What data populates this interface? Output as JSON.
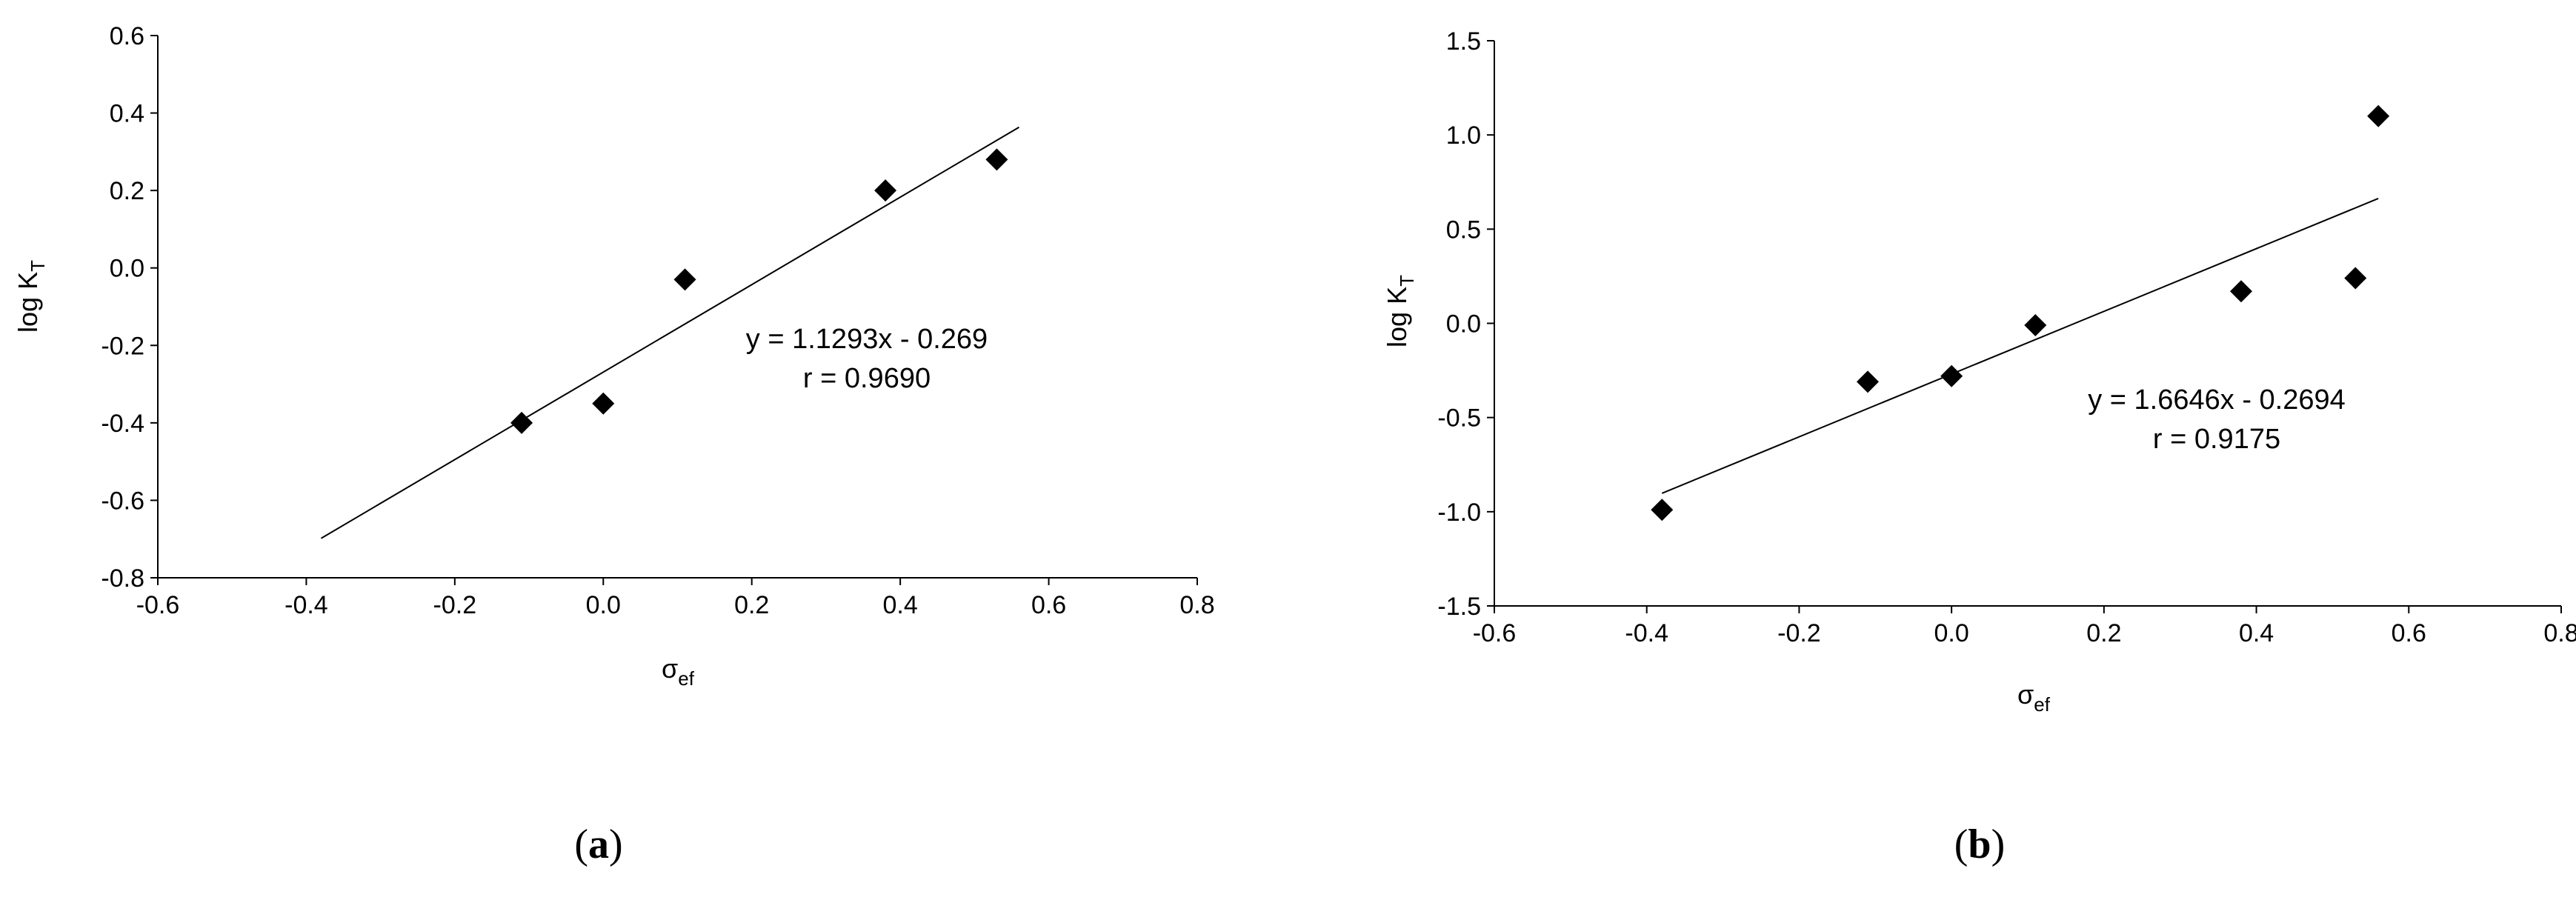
{
  "chart_data": [
    {
      "type": "scatter",
      "caption": "(a)",
      "caption_letter": "a",
      "xlabel": "σef",
      "ylabel": "log KT",
      "xlim": [
        -0.6,
        0.8
      ],
      "ylim": [
        -0.8,
        0.6
      ],
      "xticks": [
        "-0.6",
        "-0.4",
        "-0.2",
        "0.0",
        "0.2",
        "0.4",
        "0.6",
        "0.8"
      ],
      "yticks": [
        "-0.8",
        "-0.6",
        "-0.4",
        "-0.2",
        "0.0",
        "0.2",
        "0.4",
        "0.6"
      ],
      "series": [
        {
          "x": [
            -0.11,
            0.0,
            0.11,
            0.38,
            0.53
          ],
          "y": [
            -0.4,
            -0.35,
            -0.03,
            0.2,
            0.28
          ]
        }
      ],
      "trendline": {
        "slope": 1.1293,
        "intercept": -0.269,
        "x_range": [
          -0.38,
          0.56
        ]
      },
      "equation": "y = 1.1293x - 0.269",
      "r_text": "r = 0.9690",
      "grid": false,
      "marker_color": "#000000"
    },
    {
      "type": "scatter",
      "caption": "(b)",
      "caption_letter": "b",
      "xlabel": "σef",
      "ylabel": "log KT",
      "xlim": [
        -0.6,
        0.8
      ],
      "ylim": [
        -1.5,
        1.5
      ],
      "xticks": [
        "-0.6",
        "-0.4",
        "-0.2",
        "0.0",
        "0.2",
        "0.4",
        "0.6",
        "0.8"
      ],
      "yticks": [
        "-1.5",
        "-1.0",
        "-0.5",
        "0.0",
        "0.5",
        "1.0",
        "1.5"
      ],
      "series": [
        {
          "x": [
            -0.38,
            -0.11,
            0.0,
            0.11,
            0.38,
            0.53,
            0.56
          ],
          "y": [
            -0.99,
            -0.31,
            -0.28,
            -0.01,
            0.17,
            0.24,
            1.1
          ]
        }
      ],
      "trendline": {
        "slope": 1.6646,
        "intercept": -0.2694,
        "x_range": [
          -0.38,
          0.56
        ]
      },
      "equation": "y = 1.6646x - 0.2694",
      "r_text": "r = 0.9175",
      "grid": false,
      "marker_color": "#000000"
    }
  ]
}
